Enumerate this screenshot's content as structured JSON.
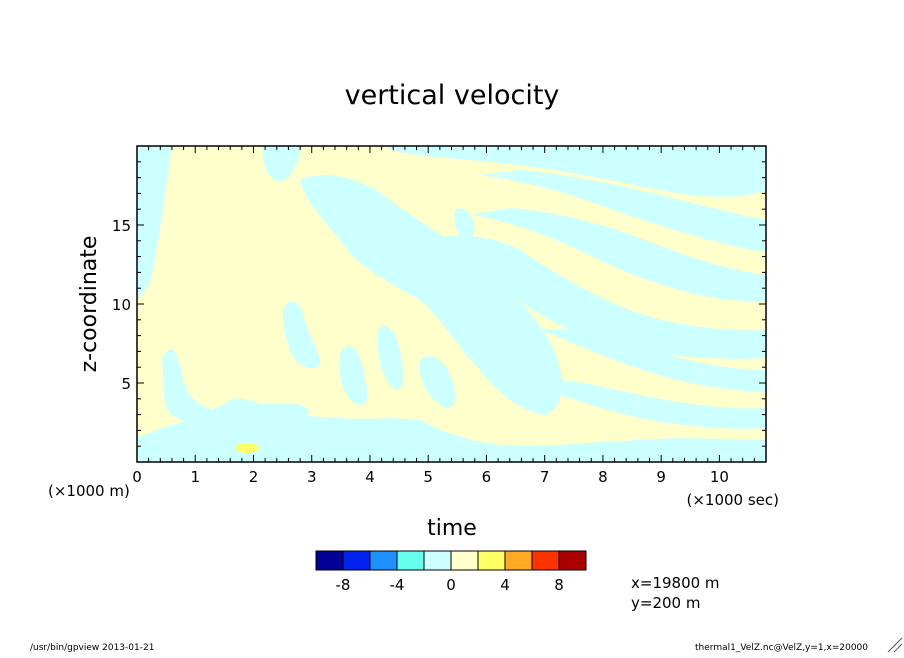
{
  "chart_data": {
    "type": "heatmap",
    "title": "vertical velocity",
    "xlabel": "time",
    "ylabel": "z-coordinate",
    "x_unit_label": "(×1000 sec)",
    "y_unit_label": "(×1000 m)",
    "xlim": [
      0,
      10.8
    ],
    "ylim": [
      0,
      20
    ],
    "x_ticks": [
      "0",
      "1",
      "2",
      "3",
      "4",
      "5",
      "6",
      "7",
      "8",
      "9",
      "10"
    ],
    "y_ticks": [
      "5",
      "10",
      "15"
    ],
    "colorbar": {
      "colors": [
        "#000099",
        "#0022ee",
        "#1e90ff",
        "#66ffee",
        "#ccffff",
        "#ffffcc",
        "#ffff66",
        "#ffaa22",
        "#ff3300",
        "#aa0000"
      ],
      "tick_labels": [
        "-8",
        "-4",
        "0",
        "4",
        "8"
      ]
    },
    "dominant_levels": [
      "0 to 2 (pale yellow)",
      "-2 to 0 (pale cyan)"
    ],
    "annotations": [
      "x=19800 m",
      "y=200 m"
    ]
  },
  "footer": {
    "left": "/usr/bin/gpview  2013-01-21",
    "right": "thermal1_VelZ.nc@VelZ,y=1,x=20000"
  }
}
